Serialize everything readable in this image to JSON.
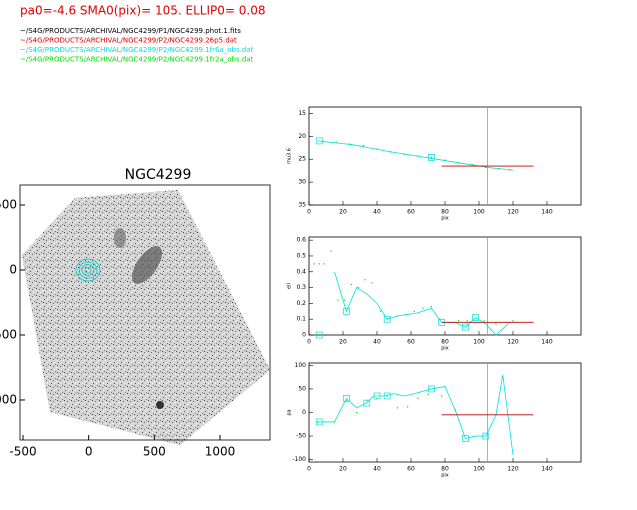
{
  "header": {
    "title": "pa0=-4.6  SMA0(pix)= 105.  ELLIP0= 0.08",
    "title_color": "#e00000",
    "files": [
      {
        "text": "~/S4G/PRODUCTS/ARCHIVAL/NGC4299/P1/NGC4299.phot.1.fits",
        "color": "#000000"
      },
      {
        "text": "~/S4G/PRODUCTS/ARCHIVAL/NGC4299/P2/NGC4299.26p5.dat",
        "color": "#e00000"
      },
      {
        "text": "~/S4G/PRODUCTS/ARCHIVAL/NGC4299/P2/NGC4299.1fr6a_obs.dat",
        "color": "#00e0e0"
      },
      {
        "text": "~/S4G/PRODUCTS/ARCHIVAL/NGC4299/P2/NGC4299.1fr2a_obs.dat",
        "color": "#00e000"
      }
    ]
  },
  "chart_data": [
    {
      "type": "image",
      "title": "NGC4299",
      "xlim": [
        -523,
        1381
      ],
      "ylim": [
        -1308,
        654
      ],
      "xticks": [
        -500,
        0,
        500,
        1000
      ],
      "yticks": [
        500,
        0,
        -500,
        -1000
      ]
    },
    {
      "type": "line",
      "ylabel": "mu3.6",
      "xlabel": "pix",
      "xlim": [
        0,
        160
      ],
      "ylim": [
        13.6,
        35
      ],
      "xticks": [
        0,
        20,
        40,
        60,
        80,
        100,
        120,
        140
      ],
      "yticks": [
        15,
        20,
        25,
        30,
        35
      ],
      "vline": {
        "x": 105,
        "color": "#e08070"
      },
      "hline": {
        "y": 26.5,
        "x": [
          78,
          132
        ],
        "color": "#c00000"
      },
      "series": [
        {
          "style": "line",
          "color": "#00e0e0",
          "x": [
            5,
            10,
            15,
            20,
            25,
            30,
            35,
            40,
            45,
            50,
            55,
            60,
            65,
            70,
            75,
            80,
            85,
            90,
            95,
            100,
            105,
            110,
            115,
            120
          ],
          "values": [
            21,
            21.2,
            21.4,
            21.6,
            21.8,
            22.1,
            22.5,
            22.8,
            23.2,
            23.5,
            23.8,
            24.1,
            24.4,
            24.7,
            25.0,
            25.3,
            25.6,
            25.9,
            26.2,
            26.5,
            26.8,
            27.0,
            27.2,
            27.4
          ]
        },
        {
          "style": "points",
          "color": "#00e000",
          "x": [
            8,
            16,
            24,
            32,
            40,
            48,
            56,
            64,
            72,
            80,
            88,
            96,
            104,
            112,
            118
          ],
          "values": [
            21.1,
            21.3,
            21.7,
            22.0,
            22.8,
            23.4,
            23.9,
            24.3,
            24.6,
            25.2,
            25.8,
            26.2,
            26.8,
            27.1,
            27.3
          ]
        },
        {
          "style": "squares",
          "color": "#00e0e0",
          "x": [
            6,
            72
          ],
          "values": [
            21,
            24.6
          ]
        }
      ]
    },
    {
      "type": "line",
      "ylabel": "ell",
      "xlabel": "pix",
      "xlim": [
        0,
        160
      ],
      "ylim": [
        0,
        0.62
      ],
      "xticks": [
        0,
        20,
        40,
        60,
        80,
        100,
        120,
        140
      ],
      "yticks": [
        0.0,
        0.1,
        0.2,
        0.3,
        0.4,
        0.5,
        0.6
      ],
      "vline": {
        "x": 105,
        "color": "#e08070"
      },
      "hline": {
        "y": 0.08,
        "x": [
          78,
          132
        ],
        "color": "#c00000"
      },
      "series": [
        {
          "style": "line",
          "color": "#00e0e0",
          "x": [
            15,
            22,
            28,
            34,
            40,
            46,
            52,
            58,
            64,
            72,
            78,
            86,
            92,
            98,
            104,
            110,
            118
          ],
          "values": [
            0.4,
            0.15,
            0.3,
            0.26,
            0.2,
            0.1,
            0.12,
            0.13,
            0.14,
            0.17,
            0.08,
            0.08,
            0.05,
            0.11,
            0.07,
            0.0,
            0.08
          ]
        },
        {
          "style": "points",
          "color": "#00e000",
          "x": [
            3,
            6,
            9,
            13,
            17,
            21,
            25,
            29,
            33,
            37,
            42,
            46,
            52,
            57,
            62,
            67,
            72,
            77,
            83,
            88,
            93,
            98,
            103,
            110,
            116,
            120
          ],
          "values": [
            0.45,
            0.45,
            0.45,
            0.53,
            0.22,
            0.22,
            0.32,
            0.3,
            0.35,
            0.33,
            0.15,
            0.1,
            0.12,
            0.13,
            0.15,
            0.17,
            0.18,
            0.1,
            0.08,
            0.09,
            0.09,
            0.08,
            0.09,
            0.07,
            0.08,
            0.09
          ]
        },
        {
          "style": "squares",
          "color": "#00e0e0",
          "x": [
            6,
            22,
            46,
            78,
            92,
            98
          ],
          "values": [
            0.0,
            0.15,
            0.1,
            0.08,
            0.05,
            0.11
          ]
        }
      ]
    },
    {
      "type": "line",
      "ylabel": "pa",
      "xlabel": "pix",
      "xlim": [
        0,
        160
      ],
      "ylim": [
        -105,
        105
      ],
      "xticks": [
        0,
        20,
        40,
        60,
        80,
        100,
        120,
        140
      ],
      "yticks": [
        -100,
        -50,
        0,
        50,
        100
      ],
      "vline": {
        "x": 105,
        "color": "#e08070"
      },
      "hline": {
        "y": -5,
        "x": [
          78,
          132
        ],
        "color": "#c00000"
      },
      "series": [
        {
          "style": "line",
          "color": "#00e0e0",
          "x": [
            5,
            10,
            15,
            22,
            28,
            34,
            38,
            44,
            50,
            56,
            62,
            72,
            80,
            86,
            92,
            98,
            104,
            110,
            114,
            120
          ],
          "values": [
            -20,
            -20,
            -20,
            30,
            10,
            20,
            35,
            35,
            40,
            35,
            40,
            50,
            55,
            5,
            -55,
            -50,
            -50,
            -5,
            80,
            -90
          ]
        },
        {
          "style": "points",
          "color": "#00e000",
          "x": [
            5,
            15,
            22,
            28,
            34,
            40,
            46,
            52,
            58,
            64,
            70,
            78,
            86
          ],
          "values": [
            -20,
            -20,
            25,
            0,
            25,
            30,
            35,
            10,
            12,
            30,
            38,
            35,
            5
          ]
        },
        {
          "style": "squares",
          "color": "#00e0e0",
          "x": [
            6,
            22,
            34,
            40,
            46,
            72,
            92,
            104
          ],
          "values": [
            -20,
            30,
            20,
            35,
            35,
            50,
            -55,
            -50
          ]
        }
      ]
    }
  ]
}
